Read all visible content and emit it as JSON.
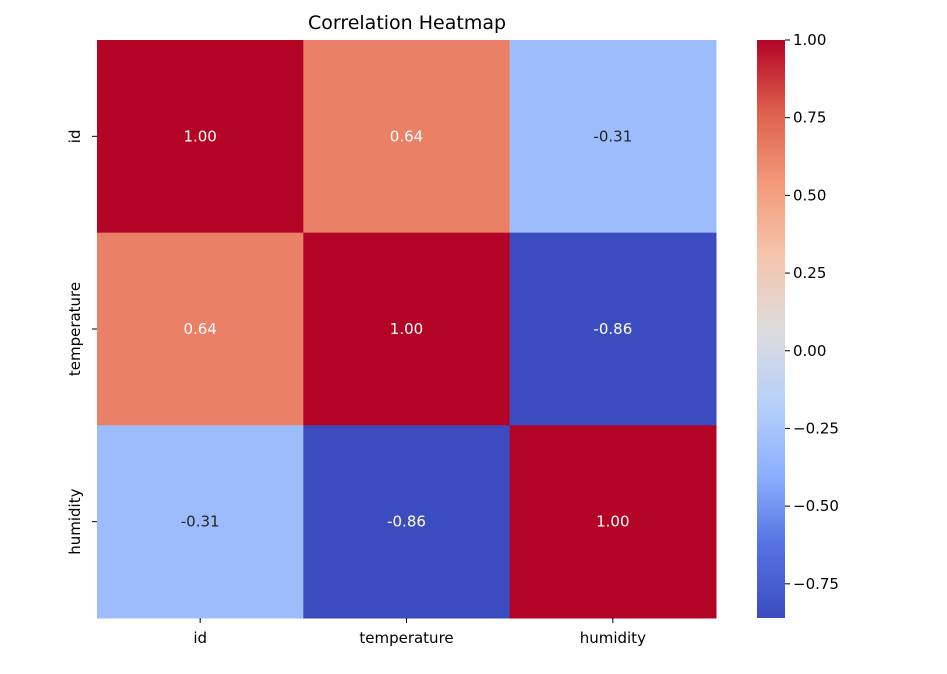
{
  "chart_data": {
    "type": "heatmap",
    "title": "Correlation Heatmap",
    "xlabel": "",
    "ylabel": "",
    "x_categories": [
      "id",
      "temperature",
      "humidity"
    ],
    "y_categories": [
      "id",
      "temperature",
      "humidity"
    ],
    "values": [
      [
        1.0,
        0.64,
        -0.31
      ],
      [
        0.64,
        1.0,
        -0.86
      ],
      [
        -0.31,
        -0.86,
        1.0
      ]
    ],
    "cell_labels": [
      [
        "1.00",
        "0.64",
        "-0.31"
      ],
      [
        "0.64",
        "1.00",
        "-0.86"
      ],
      [
        "-0.31",
        "-0.86",
        "1.00"
      ]
    ],
    "colormap": "coolwarm",
    "colors": {
      "high": "#b40426",
      "mid": "#dddcdc",
      "low": "#3b4cc0"
    },
    "vrange": [
      -0.86,
      1.0
    ],
    "colorbar": {
      "ticks": [
        1.0,
        0.75,
        0.5,
        0.25,
        0.0,
        -0.25,
        -0.5,
        -0.75
      ],
      "tick_labels": [
        "1.00",
        "0.75",
        "0.50",
        "0.25",
        "0.00",
        "−0.25",
        "−0.50",
        "−0.75"
      ],
      "placement": "right"
    }
  }
}
